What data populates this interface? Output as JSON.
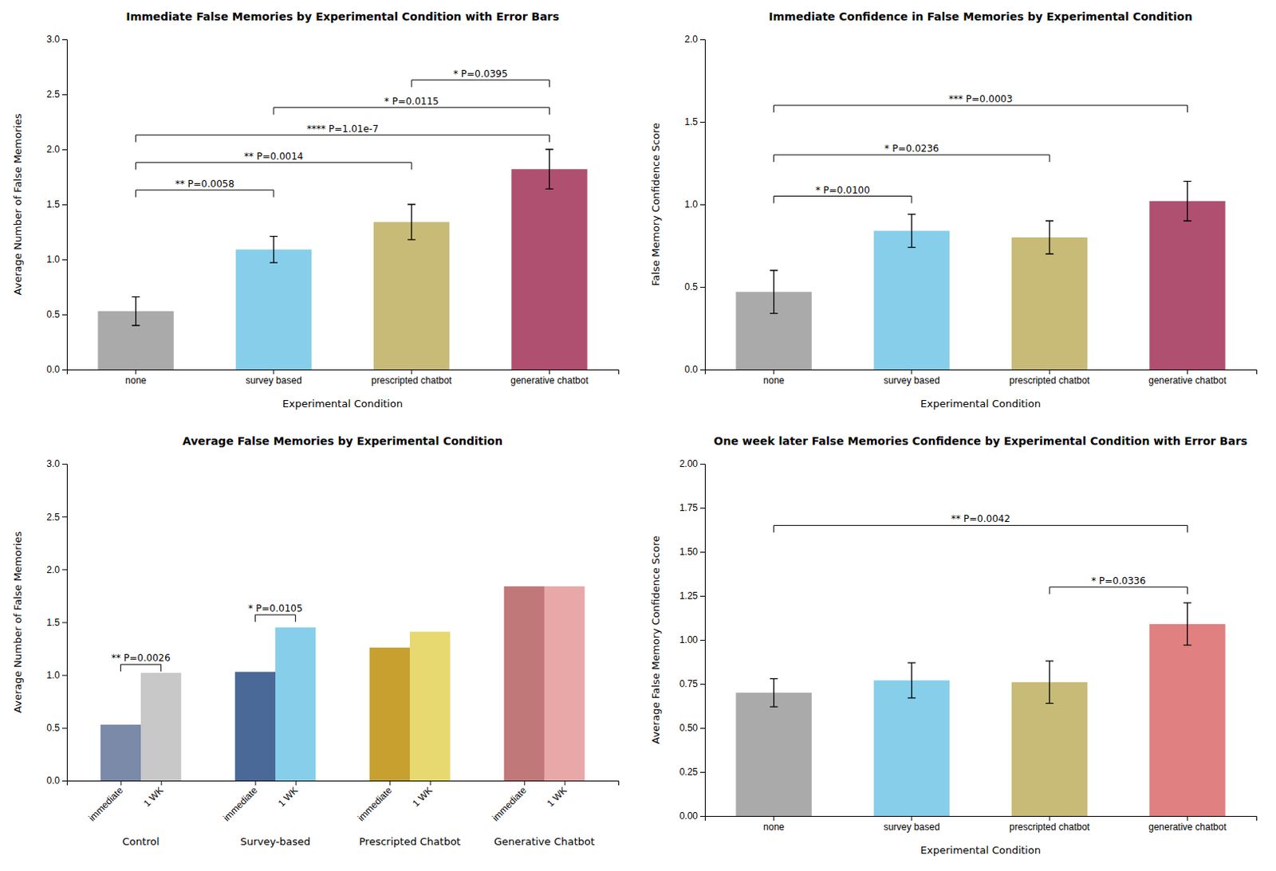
{
  "chart_data": [
    {
      "type": "bar",
      "title": "Immediate False Memories by Experimental Condition with Error Bars",
      "xlabel": "Experimental Condition",
      "ylabel": "Average Number of False Memories",
      "categories": [
        "none",
        "survey based",
        "prescripted chatbot",
        "generative chatbot"
      ],
      "values": [
        0.53,
        1.09,
        1.34,
        1.82
      ],
      "errors": [
        0.13,
        0.12,
        0.16,
        0.18
      ],
      "colors": [
        "#aaaaaa",
        "#87CEEB",
        "#c8bb78",
        "#b05070"
      ],
      "ylim": [
        0,
        3.0
      ],
      "yticks": [
        {
          "value": 0,
          "label": "0.0"
        },
        0.5,
        {
          "value": 1,
          "label": "1.0"
        },
        1.5,
        {
          "value": 2,
          "label": "2.0"
        },
        2.5,
        {
          "value": 3,
          "label": "3.0"
        }
      ],
      "annotations": [
        {
          "from": "none",
          "to": "survey based",
          "y": 1.63,
          "text": "** P=0.0058"
        },
        {
          "from": "none",
          "to": "prescripted chatbot",
          "y": 1.88,
          "text": "** P=0.0014"
        },
        {
          "from": "none",
          "to": "generative chatbot",
          "y": 2.13,
          "text": "**** P=1.01e-7"
        },
        {
          "from": "survey based",
          "to": "generative chatbot",
          "y": 2.38,
          "text": "* P=0.0115"
        },
        {
          "from": "prescripted chatbot",
          "to": "generative chatbot",
          "y": 2.63,
          "text": "* P=0.0395"
        }
      ]
    },
    {
      "type": "bar",
      "title": "Immediate Confidence in False Memories by Experimental Condition",
      "xlabel": "Experimental Condition",
      "ylabel": "False Memory Confidence Score",
      "categories": [
        "none",
        "survey based",
        "prescripted chatbot",
        "generative chatbot"
      ],
      "values": [
        0.47,
        0.84,
        0.8,
        1.02
      ],
      "errors": [
        0.13,
        0.1,
        0.1,
        0.12
      ],
      "colors": [
        "#aaaaaa",
        "#87CEEB",
        "#c8bb78",
        "#b05070"
      ],
      "ylim": [
        0,
        2.0
      ],
      "yticks": [
        {
          "value": 0,
          "label": "0.0"
        },
        0.5,
        {
          "value": 1,
          "label": "1.0"
        },
        1.5,
        {
          "value": 2,
          "label": "2.0"
        }
      ],
      "annotations": [
        {
          "from": "none",
          "to": "survey based",
          "y": 1.05,
          "text": "* P=0.0100"
        },
        {
          "from": "none",
          "to": "prescripted chatbot",
          "y": 1.3,
          "text": "* P=0.0236"
        },
        {
          "from": "none",
          "to": "generative chatbot",
          "y": 1.6,
          "text": "*** P=0.0003"
        }
      ]
    },
    {
      "type": "bar",
      "title": "Average False Memories by Experimental Condition",
      "ylabel": "Average Number of False Memories",
      "categories": [
        "Control",
        "Survey-based",
        "Prescripted Chatbot",
        "Generative Chatbot"
      ],
      "series": [
        {
          "name": "immediate",
          "values": [
            0.53,
            1.03,
            1.26,
            1.84
          ],
          "colors": [
            "#7a8aa8",
            "#4a6898",
            "#c8a030",
            "#c07878"
          ]
        },
        {
          "name": "1 WK",
          "values": [
            1.02,
            1.45,
            1.41,
            1.84
          ],
          "colors": [
            "#c8c8c8",
            "#87CEEB",
            "#e8d870",
            "#e8a8a8"
          ]
        }
      ],
      "ylim": [
        0,
        3.0
      ],
      "yticks": [
        {
          "value": 0,
          "label": "0.0"
        },
        0.5,
        {
          "value": 1,
          "label": "1.0"
        },
        1.5,
        {
          "value": 2,
          "label": "2.0"
        },
        2.5,
        {
          "value": 3,
          "label": "3.0"
        }
      ],
      "annotations": [
        {
          "category": "Control",
          "from": "immediate",
          "to": "1 WK",
          "y": 1.1,
          "text": "** P=0.0026"
        },
        {
          "category": "Survey-based",
          "from": "immediate",
          "to": "1 WK",
          "y": 1.57,
          "text": "* P=0.0105"
        }
      ]
    },
    {
      "type": "bar",
      "title": "One week later False Memories Confidence by Experimental Condition with Error Bars",
      "xlabel": "Experimental Condition",
      "ylabel": "Average False Memory Confidence Score",
      "categories": [
        "none",
        "survey based",
        "prescripted chatbot",
        "generative chatbot"
      ],
      "values": [
        0.7,
        0.77,
        0.76,
        1.09
      ],
      "errors": [
        0.08,
        0.1,
        0.12,
        0.12
      ],
      "colors": [
        "#aaaaaa",
        "#87CEEB",
        "#c8bb78",
        "#e08080"
      ],
      "ylim": [
        0,
        2.0
      ],
      "yticks": [
        {
          "value": 0,
          "label": "0.00"
        },
        0.25,
        {
          "value": 0.5,
          "label": "0.50"
        },
        0.75,
        {
          "value": 1,
          "label": "1.00"
        },
        1.25,
        {
          "value": 1.5,
          "label": "1.50"
        },
        1.75,
        {
          "value": 2,
          "label": "2.00"
        }
      ],
      "annotations": [
        {
          "from": "prescripted chatbot",
          "to": "generative chatbot",
          "y": 1.3,
          "text": "* P=0.0336"
        },
        {
          "from": "none",
          "to": "generative chatbot",
          "y": 1.65,
          "text": "** P=0.0042"
        }
      ]
    }
  ]
}
